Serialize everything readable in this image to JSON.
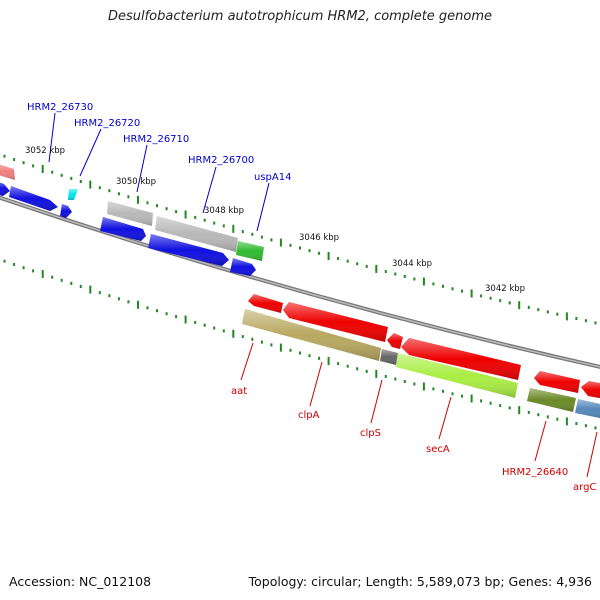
{
  "title": "Desulfobacterium autotrophicum HRM2, complete genome",
  "footer": {
    "accession": "Accession: NC_012108",
    "topology": "Topology: circular; Length: 5,589,073 bp; Genes: 4,936"
  },
  "kbp_labels": [
    "3052 kbp",
    "3050 kbp",
    "3048 kbp",
    "3046 kbp",
    "3044 kbp",
    "3042 kbp"
  ],
  "genes_top": [
    "HRM2_26730",
    "HRM2_26720",
    "HRM2_26710",
    "HRM2_26700",
    "uspA14"
  ],
  "genes_bottom": [
    "aat",
    "clpA",
    "clpS",
    "secA",
    "HRM2_26640",
    "argC"
  ],
  "colors": {
    "blue_label": "#0000cc",
    "red_label": "#cc0000",
    "gene_blue": "#1010e0",
    "gene_red": "#ee0000",
    "gene_gray": "#b8b8b8",
    "gene_green": "#33bb33",
    "gene_cyan": "#00e5ee",
    "gene_olive": "#b8a860",
    "gene_lime": "#aaee44",
    "gene_darkolive": "#6b8a28",
    "gene_steelblue": "#5588bb",
    "gene_pink": "#f08080",
    "tick_green": "#228822",
    "backbone": "#888888"
  }
}
